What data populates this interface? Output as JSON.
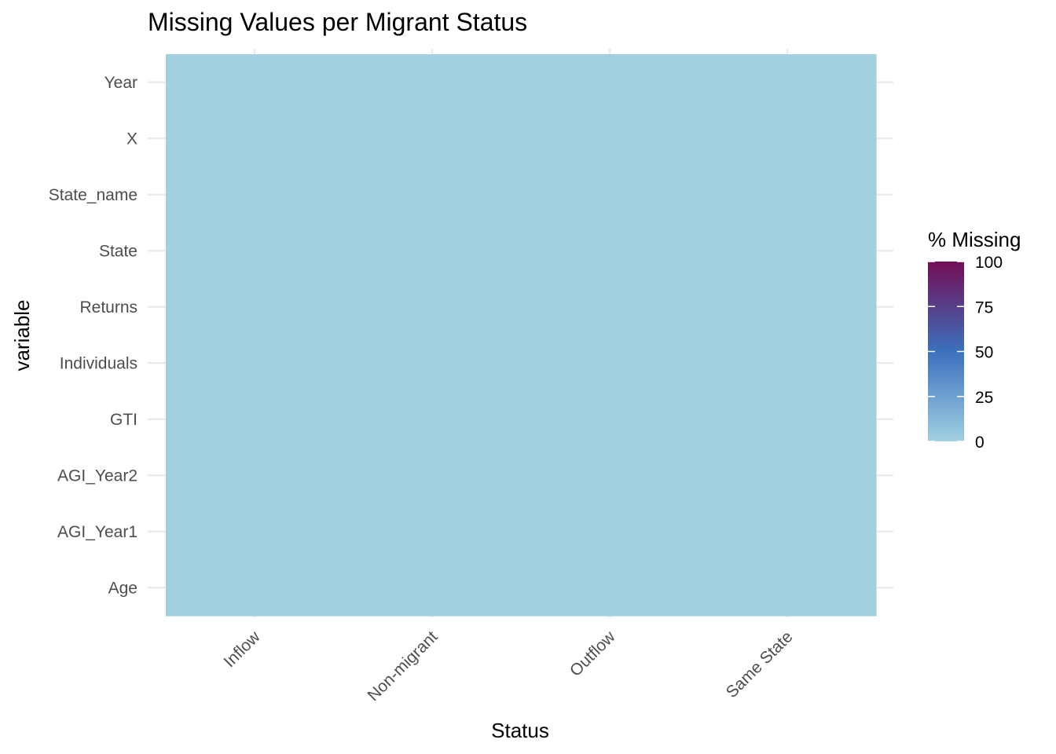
{
  "chart_data": {
    "type": "heatmap",
    "title": "Missing Values per Migrant Status",
    "xlabel": "Status",
    "ylabel": "variable",
    "x_categories": [
      "Inflow",
      "Non-migrant",
      "Outflow",
      "Same State"
    ],
    "y_categories": [
      "Year",
      "X",
      "State_name",
      "State",
      "Returns",
      "Individuals",
      "GTI",
      "AGI_Year2",
      "AGI_Year1",
      "Age"
    ],
    "values": [
      [
        0,
        0,
        0,
        0
      ],
      [
        0,
        0,
        0,
        0
      ],
      [
        0,
        0,
        0,
        0
      ],
      [
        0,
        0,
        0,
        0
      ],
      [
        0,
        0,
        0,
        0
      ],
      [
        0,
        0,
        0,
        0
      ],
      [
        0,
        0,
        0,
        0
      ],
      [
        0,
        0,
        0,
        0
      ],
      [
        0,
        0,
        0,
        0
      ],
      [
        0,
        0,
        0,
        0
      ]
    ],
    "legend": {
      "title": "% Missing",
      "position": "right",
      "range": [
        0,
        100
      ],
      "ticks": [
        0,
        25,
        50,
        75,
        100
      ],
      "colors": [
        "#a1d0e0",
        "#3b70bd",
        "#730e55"
      ]
    },
    "grid": true
  }
}
